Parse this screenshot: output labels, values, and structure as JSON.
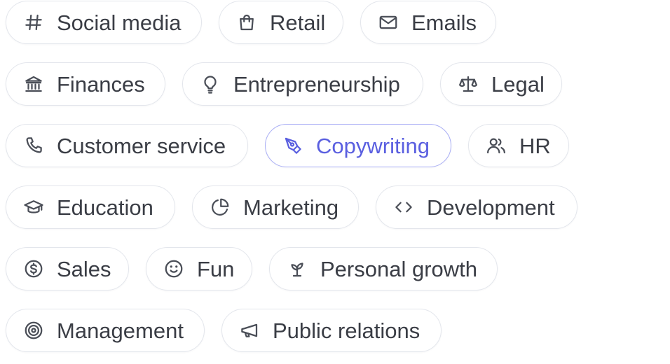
{
  "accent_color": "#5a5fe0",
  "selected": "Copywriting",
  "categories": [
    {
      "label": "Social media",
      "icon": "hash-icon"
    },
    {
      "label": "Retail",
      "icon": "shopping-bag-icon"
    },
    {
      "label": "Emails",
      "icon": "mail-icon"
    },
    {
      "label": "Finances",
      "icon": "bank-icon"
    },
    {
      "label": "Entrepreneurship",
      "icon": "lightbulb-icon"
    },
    {
      "label": "Legal",
      "icon": "scale-icon"
    },
    {
      "label": "Customer service",
      "icon": "phone-icon"
    },
    {
      "label": "Copywriting",
      "icon": "pen-tool-icon"
    },
    {
      "label": "HR",
      "icon": "users-icon"
    },
    {
      "label": "Education",
      "icon": "graduation-cap-icon"
    },
    {
      "label": "Marketing",
      "icon": "pie-chart-icon"
    },
    {
      "label": "Development",
      "icon": "code-icon"
    },
    {
      "label": "Sales",
      "icon": "dollar-circle-icon"
    },
    {
      "label": "Fun",
      "icon": "smile-icon"
    },
    {
      "label": "Personal growth",
      "icon": "sprout-icon"
    },
    {
      "label": "Management",
      "icon": "target-icon"
    },
    {
      "label": "Public relations",
      "icon": "megaphone-icon"
    }
  ]
}
